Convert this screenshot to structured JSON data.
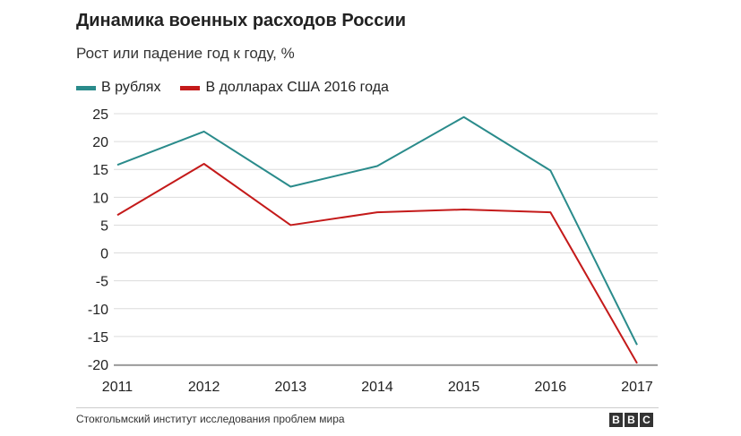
{
  "chart_data": {
    "type": "line",
    "title": "Динамика военных расходов России",
    "subtitle": "Рост или падение год к году, %",
    "x": [
      "2011",
      "2012",
      "2013",
      "2014",
      "2015",
      "2016",
      "2017"
    ],
    "series": [
      {
        "name": "В рублях",
        "color": "#2a8b8b",
        "values": [
          15.8,
          21.8,
          11.9,
          15.6,
          24.4,
          14.8,
          -16.5
        ]
      },
      {
        "name": "В долларах США 2016 года",
        "color": "#c41a1a",
        "values": [
          6.8,
          16.0,
          5.0,
          7.3,
          7.8,
          7.3,
          -19.8
        ]
      }
    ],
    "yticks": [
      "25",
      "20",
      "15",
      "10",
      "5",
      "0",
      "-5",
      "-10",
      "-15",
      "-20"
    ],
    "ylim": [
      -20,
      25
    ],
    "grid": true,
    "legend": "top-left"
  },
  "footer": {
    "source": "Стокгольмский институт исследования проблем мира",
    "logo": [
      "B",
      "B",
      "C"
    ]
  }
}
